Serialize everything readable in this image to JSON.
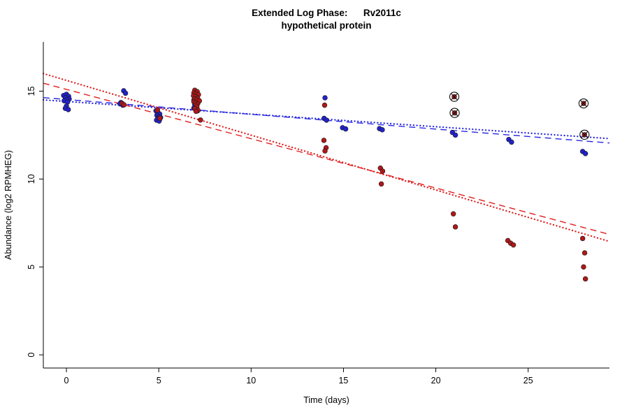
{
  "title": {
    "line1": "Extended Log Phase:      Rv2011c",
    "line2": "hypothetical protein"
  },
  "chart_data": {
    "type": "scatter",
    "title": "Extended Log Phase: Rv2011c (hypothetical protein)",
    "xlabel": "Time  (days)",
    "ylabel": "Abundance  (log2 RPMHEG)",
    "xlim": [
      -1.25,
      29.4
    ],
    "ylim": [
      -0.75,
      17.8
    ],
    "xticks": [
      0,
      5,
      10,
      15,
      20,
      25
    ],
    "yticks": [
      0,
      5,
      10,
      15
    ],
    "grid": false,
    "legend": "none",
    "series": [
      {
        "name": "condition-blue",
        "color": "#2222CC",
        "marker": "filled-circle",
        "points": [
          [
            -0.15,
            14.75
          ],
          [
            0,
            14.82
          ],
          [
            0.12,
            14.7
          ],
          [
            -0.05,
            14.62
          ],
          [
            0.15,
            14.55
          ],
          [
            0.02,
            14.5
          ],
          [
            -0.12,
            14.45
          ],
          [
            0.06,
            14.38
          ],
          [
            0,
            14.15
          ],
          [
            -0.06,
            14.02
          ],
          [
            0.1,
            13.95
          ],
          [
            2.95,
            14.35
          ],
          [
            3.1,
            15.02
          ],
          [
            3.2,
            14.88
          ],
          [
            2.9,
            14.28
          ],
          [
            3.05,
            14.2
          ],
          [
            4.85,
            13.88
          ],
          [
            4.95,
            13.78
          ],
          [
            5.05,
            13.7
          ],
          [
            4.9,
            13.62
          ],
          [
            5,
            13.55
          ],
          [
            5.1,
            13.5
          ],
          [
            4.95,
            13.45
          ],
          [
            5.05,
            13.4
          ],
          [
            4.88,
            13.35
          ],
          [
            5.02,
            13.3
          ],
          [
            6.9,
            14.5
          ],
          [
            7.02,
            14.42
          ],
          [
            7.12,
            14.33
          ],
          [
            6.95,
            14.22
          ],
          [
            7.06,
            14.12
          ],
          [
            6.9,
            14.03
          ],
          [
            7,
            13.95
          ],
          [
            7.1,
            13.88
          ],
          [
            14,
            14.62
          ],
          [
            13.95,
            13.45
          ],
          [
            14.08,
            13.35
          ],
          [
            14.95,
            12.92
          ],
          [
            15.12,
            12.85
          ],
          [
            16.95,
            12.87
          ],
          [
            17.1,
            12.8
          ],
          [
            20.9,
            12.65
          ],
          [
            21.06,
            12.5
          ],
          [
            23.95,
            12.25
          ],
          [
            24.1,
            12.1
          ],
          [
            27.95,
            11.57
          ],
          [
            28.1,
            11.45
          ]
        ]
      },
      {
        "name": "condition-red",
        "color": "#B01818",
        "marker": "filled-circle",
        "points": [
          [
            3.02,
            14.3
          ],
          [
            3.12,
            14.22
          ],
          [
            4.93,
            13.92
          ],
          [
            5.06,
            13.46
          ],
          [
            6.95,
            15.05
          ],
          [
            7.08,
            14.97
          ],
          [
            6.9,
            14.9
          ],
          [
            7.02,
            14.85
          ],
          [
            7.15,
            14.8
          ],
          [
            6.88,
            14.74
          ],
          [
            7,
            14.68
          ],
          [
            7.1,
            14.6
          ],
          [
            6.94,
            14.55
          ],
          [
            7.05,
            14.5
          ],
          [
            7.2,
            14.45
          ],
          [
            6.9,
            14.4
          ],
          [
            7,
            14.34
          ],
          [
            7.1,
            14.28
          ],
          [
            7.02,
            14.2
          ],
          [
            7.06,
            14.1
          ],
          [
            6.96,
            14.0
          ],
          [
            7.12,
            13.92
          ],
          [
            7.02,
            13.85
          ],
          [
            7.26,
            13.36
          ],
          [
            13.98,
            14.2
          ],
          [
            13.94,
            12.2
          ],
          [
            14.06,
            11.78
          ],
          [
            14,
            11.6
          ],
          [
            17,
            10.62
          ],
          [
            17.12,
            10.45
          ],
          [
            17.05,
            9.72
          ],
          [
            20.95,
            8.02
          ],
          [
            21.06,
            7.28
          ],
          [
            23.9,
            6.5
          ],
          [
            24.05,
            6.35
          ],
          [
            24.2,
            6.25
          ],
          [
            27.95,
            6.62
          ],
          [
            28.06,
            5.8
          ],
          [
            28,
            5.0
          ],
          [
            28.1,
            4.32
          ]
        ]
      },
      {
        "name": "flagged-outliers",
        "color": "#B01818",
        "marker": "circle-x",
        "ring_color": "#111111",
        "points": [
          [
            21,
            14.68
          ],
          [
            21.02,
            13.76
          ],
          [
            28,
            14.3
          ],
          [
            28.05,
            12.52
          ]
        ]
      }
    ],
    "trend_lines": [
      {
        "name": "blue-dashed-fit",
        "color": "#2828E0",
        "style": "dashed",
        "x": [
          -1.25,
          29.4
        ],
        "y": [
          14.63,
          12.05
        ]
      },
      {
        "name": "blue-dotted-fit",
        "color": "#2828E0",
        "style": "dotted",
        "x": [
          -1.25,
          29.4
        ],
        "y": [
          14.5,
          12.3
        ]
      },
      {
        "name": "red-dashed-fit",
        "color": "#E02020",
        "style": "dashed",
        "x": [
          -1.25,
          29.4
        ],
        "y": [
          15.45,
          6.85
        ]
      },
      {
        "name": "red-dotted-fit",
        "color": "#E02020",
        "style": "dotted",
        "x": [
          -1.25,
          29.4
        ],
        "y": [
          16.0,
          6.45
        ]
      }
    ]
  }
}
